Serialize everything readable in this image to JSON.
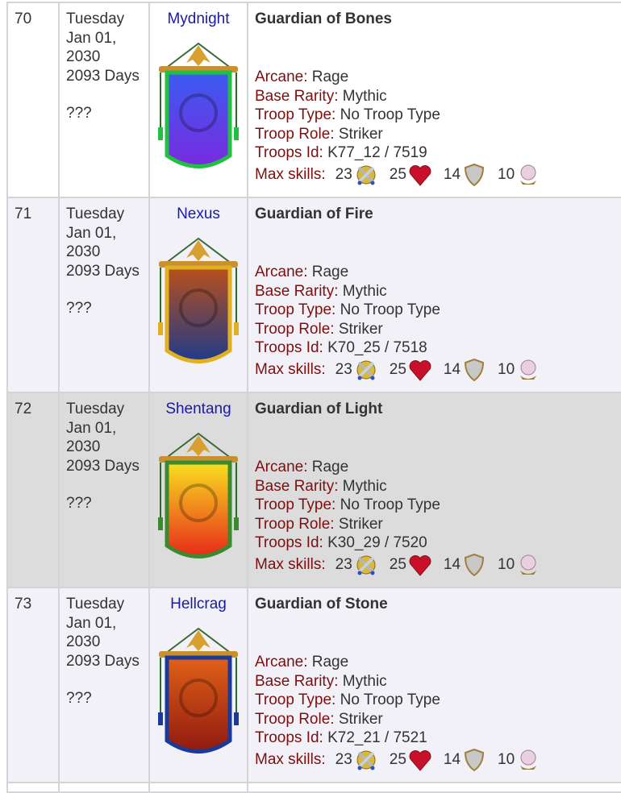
{
  "labels": {
    "arcane": "Arcane:",
    "base_rarity": "Base Rarity:",
    "troop_type": "Troop Type:",
    "troop_role": "Troop Role:",
    "troops_id": "Troops Id:",
    "max_skills": "Max skills:"
  },
  "skill_icons": [
    "attack-swords-icon",
    "life-heart-icon",
    "armor-shield-icon",
    "magic-orb-icon"
  ],
  "rows": [
    {
      "num": "70",
      "day": "Tuesday",
      "date": "Jan 01,",
      "year": "2030",
      "days": "2093 Days",
      "extra": "???",
      "kingdom": "Mydnight",
      "name": "Guardian of Bones",
      "arcane": "Rage",
      "rarity": "Mythic",
      "type": "No Troop Type",
      "role": "Striker",
      "id_label": "Troops Id:",
      "id": "K77_12 / 7519",
      "skills": [
        "23",
        "25",
        "14",
        "10"
      ],
      "banner_colors": [
        "#3a5cf0",
        "#7a2ae0",
        "#22c040"
      ]
    },
    {
      "num": "71",
      "day": "Tuesday",
      "date": "Jan 01,",
      "year": "2030",
      "days": "2093 Days",
      "extra": "???",
      "kingdom": "Nexus",
      "name": "Guardian of Fire",
      "arcane": "Rage",
      "rarity": "Mythic",
      "type": "No Troop Type",
      "role": "Striker",
      "id_label": "Troops Id:",
      "id": "K70_25 / 7518",
      "skills": [
        "23",
        "25",
        "14",
        "10"
      ],
      "banner_colors": [
        "#b8501a",
        "#203a8a",
        "#e0b020"
      ]
    },
    {
      "num": "72",
      "day": "Tuesday",
      "date": "Jan 01,",
      "year": "2030",
      "days": "2093 Days",
      "extra": "???",
      "kingdom": "Shentang",
      "name": "Guardian of Light",
      "arcane": "Rage",
      "rarity": "Mythic",
      "type": "No Troop Type",
      "role": "Striker",
      "id_label": "Troops Id:",
      "id": "K30_29 / 7520",
      "skills": [
        "23",
        "25",
        "14",
        "10"
      ],
      "banner_colors": [
        "#f8e020",
        "#e82a1a",
        "#3a8a30"
      ]
    },
    {
      "num": "73",
      "day": "Tuesday",
      "date": "Jan 01,",
      "year": "2030",
      "days": "2093 Days",
      "extra": "???",
      "kingdom": "Hellcrag",
      "name": "Guardian of Stone",
      "arcane": "Rage",
      "rarity": "Mythic",
      "type": "No Troop Type",
      "role": "Striker",
      "id_label": "Troops Id:",
      "id": "K72_21 / 7521",
      "skills": [
        "23",
        "25",
        "14",
        "10"
      ],
      "banner_colors": [
        "#e06018",
        "#901a10",
        "#1a3a9a"
      ]
    }
  ]
}
